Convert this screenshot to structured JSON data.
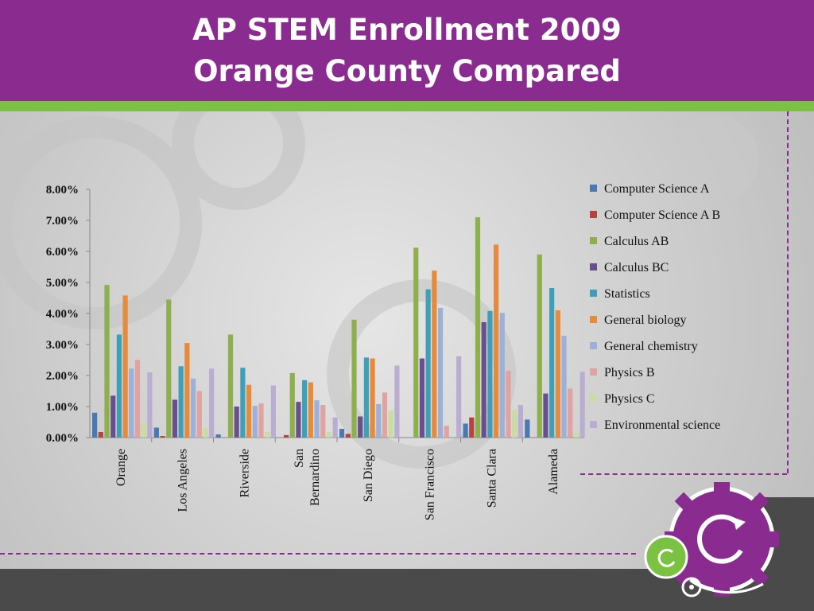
{
  "header": {
    "title_line1": "AP STEM Enrollment 2009",
    "title_line2": "Orange County Compared"
  },
  "chart_data": {
    "type": "bar",
    "categories": [
      "Orange",
      "Los Angeles",
      "Riverside",
      "San Bernardino",
      "San Diego",
      "San Francisco",
      "Santa Clara",
      "Alameda"
    ],
    "category_lines": [
      [
        "Orange"
      ],
      [
        "Los Angeles"
      ],
      [
        "Riverside"
      ],
      [
        "San",
        "Bernardino"
      ],
      [
        "San Diego"
      ],
      [
        "San Francisco"
      ],
      [
        "Santa Clara"
      ],
      [
        "Alameda"
      ]
    ],
    "ylim": [
      0,
      8
    ],
    "yticks": [
      "0.00%",
      "1.00%",
      "2.00%",
      "3.00%",
      "4.00%",
      "5.00%",
      "6.00%",
      "7.00%",
      "8.00%"
    ],
    "legend_position": "right",
    "series": [
      {
        "name": "Computer Science A",
        "color": "#4a78b0",
        "values": [
          0.8,
          0.32,
          0.1,
          0.0,
          0.28,
          0.0,
          0.45,
          0.58
        ]
      },
      {
        "name": "Computer Science A B",
        "color": "#b4443f",
        "values": [
          0.18,
          0.05,
          0.0,
          0.08,
          0.12,
          0.0,
          0.65,
          0.0
        ]
      },
      {
        "name": "Calculus AB",
        "color": "#8db04c",
        "values": [
          4.92,
          4.45,
          3.32,
          2.08,
          3.8,
          6.12,
          7.1,
          5.9
        ]
      },
      {
        "name": "Calculus BC",
        "color": "#6a4f8e",
        "values": [
          1.35,
          1.22,
          1.0,
          1.15,
          0.68,
          2.55,
          3.72,
          1.42
        ]
      },
      {
        "name": "Statistics",
        "color": "#3f9fb7",
        "values": [
          3.32,
          2.3,
          2.25,
          1.85,
          2.58,
          4.78,
          4.08,
          4.82
        ]
      },
      {
        "name": "General biology",
        "color": "#e68a3c",
        "values": [
          4.58,
          3.05,
          1.7,
          1.78,
          2.55,
          5.38,
          6.22,
          4.1
        ]
      },
      {
        "name": "General chemistry",
        "color": "#9cb0d8",
        "values": [
          2.22,
          1.9,
          1.02,
          1.2,
          1.08,
          4.18,
          4.02,
          3.28
        ]
      },
      {
        "name": "Physics B",
        "color": "#e0a3a0",
        "values": [
          2.5,
          1.5,
          1.1,
          1.05,
          1.45,
          0.38,
          2.15,
          1.58
        ]
      },
      {
        "name": "Physics C",
        "color": "#c8dca4",
        "values": [
          0.48,
          0.3,
          0.18,
          0.18,
          0.88,
          0.0,
          0.9,
          0.15
        ]
      },
      {
        "name": "Environmental science",
        "color": "#b9aed2",
        "values": [
          2.1,
          2.22,
          1.68,
          0.65,
          2.32,
          2.62,
          1.05,
          2.12
        ]
      }
    ]
  }
}
